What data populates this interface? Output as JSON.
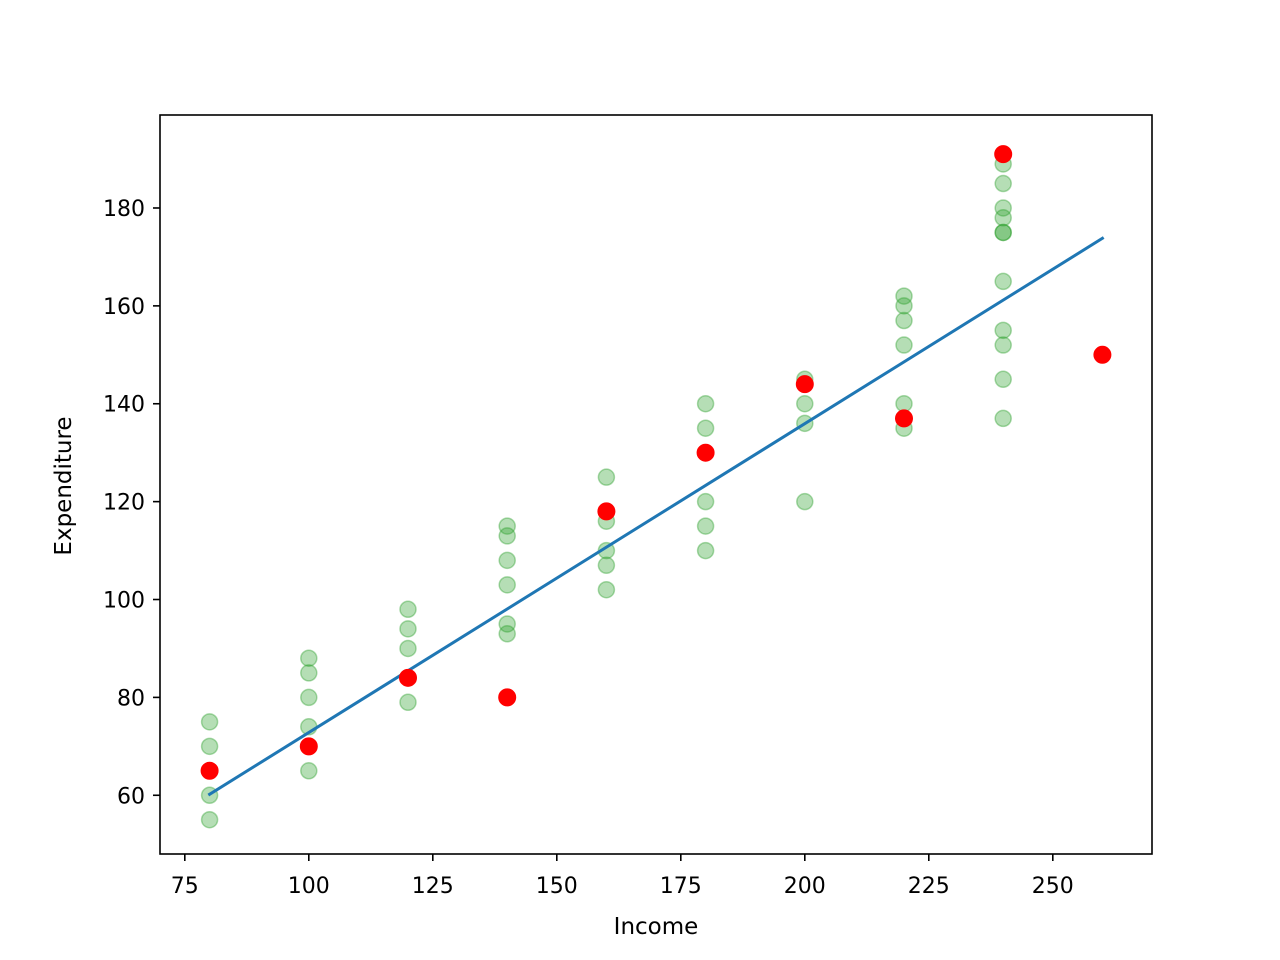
{
  "chart_data": {
    "type": "scatter",
    "title": "",
    "xlabel": "Income",
    "ylabel": "Expenditure",
    "xlim": [
      70,
      270
    ],
    "ylim": [
      48,
      199
    ],
    "xticks": [
      75,
      100,
      125,
      150,
      175,
      200,
      225,
      250
    ],
    "yticks": [
      60,
      80,
      100,
      120,
      140,
      160,
      180
    ],
    "grid": false,
    "legend": "none",
    "colors": {
      "observations": "#2ca02c",
      "means": "#ff0000",
      "fit": "#1f77b4"
    },
    "series": [
      {
        "kind": "scatter",
        "alpha": 0.35,
        "points": [
          [
            80,
            55
          ],
          [
            80,
            60
          ],
          [
            80,
            65
          ],
          [
            80,
            70
          ],
          [
            80,
            75
          ],
          [
            100,
            65
          ],
          [
            100,
            70
          ],
          [
            100,
            74
          ],
          [
            100,
            80
          ],
          [
            100,
            85
          ],
          [
            100,
            88
          ],
          [
            120,
            79
          ],
          [
            120,
            84
          ],
          [
            120,
            90
          ],
          [
            120,
            94
          ],
          [
            120,
            98
          ],
          [
            140,
            80
          ],
          [
            140,
            93
          ],
          [
            140,
            95
          ],
          [
            140,
            103
          ],
          [
            140,
            108
          ],
          [
            140,
            113
          ],
          [
            140,
            115
          ],
          [
            160,
            102
          ],
          [
            160,
            107
          ],
          [
            160,
            110
          ],
          [
            160,
            116
          ],
          [
            160,
            118
          ],
          [
            160,
            125
          ],
          [
            180,
            110
          ],
          [
            180,
            115
          ],
          [
            180,
            120
          ],
          [
            180,
            130
          ],
          [
            180,
            135
          ],
          [
            180,
            140
          ],
          [
            200,
            120
          ],
          [
            200,
            136
          ],
          [
            200,
            140
          ],
          [
            200,
            144
          ],
          [
            200,
            145
          ],
          [
            220,
            135
          ],
          [
            220,
            137
          ],
          [
            220,
            140
          ],
          [
            220,
            152
          ],
          [
            220,
            157
          ],
          [
            220,
            160
          ],
          [
            220,
            162
          ],
          [
            240,
            137
          ],
          [
            240,
            145
          ],
          [
            240,
            152
          ],
          [
            240,
            155
          ],
          [
            240,
            165
          ],
          [
            240,
            175
          ],
          [
            240,
            175
          ],
          [
            240,
            178
          ],
          [
            240,
            180
          ],
          [
            240,
            185
          ],
          [
            240,
            189
          ],
          [
            240,
            191
          ]
        ]
      },
      {
        "kind": "scatter",
        "alpha": 1,
        "points": [
          [
            80,
            65
          ],
          [
            100,
            70
          ],
          [
            120,
            84
          ],
          [
            140,
            80
          ],
          [
            160,
            118
          ],
          [
            180,
            130
          ],
          [
            200,
            144
          ],
          [
            220,
            137
          ],
          [
            240,
            191
          ],
          [
            260,
            150
          ]
        ]
      },
      {
        "kind": "line",
        "points": [
          [
            80,
            60.2
          ],
          [
            260,
            173.8
          ]
        ]
      }
    ]
  }
}
